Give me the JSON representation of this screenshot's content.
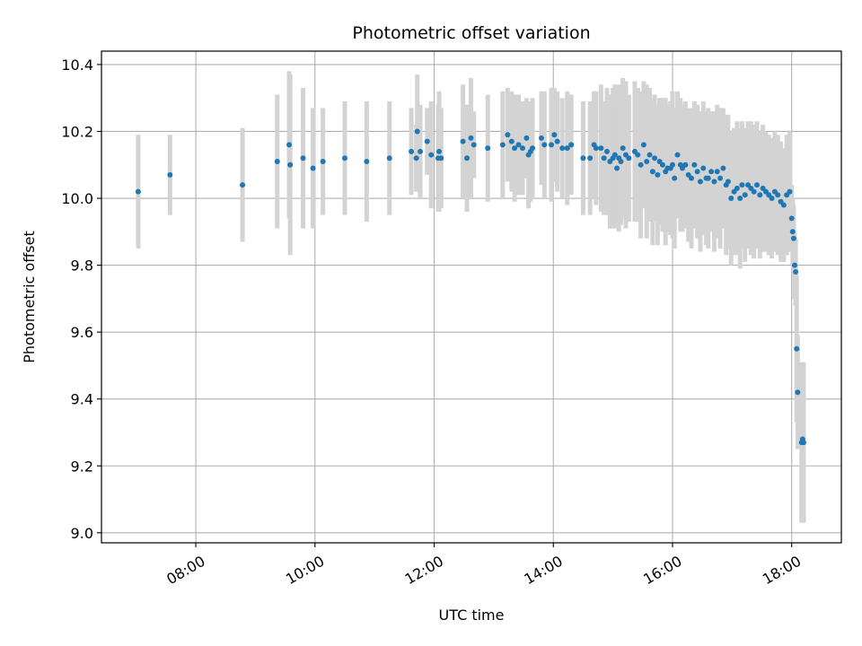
{
  "chart_data": {
    "type": "scatter",
    "title": "Photometric offset variation",
    "xlabel": "UTC time",
    "ylabel": "Photometric offset",
    "xlim": [
      "06:25",
      "18:50"
    ],
    "ylim": [
      8.97,
      10.44
    ],
    "x_ticks": [
      "08:00",
      "10:00",
      "12:00",
      "14:00",
      "16:00",
      "18:00"
    ],
    "y_ticks": [
      "9.0",
      "9.2",
      "9.4",
      "9.6",
      "9.8",
      "10.0",
      "10.2",
      "10.4"
    ],
    "grid": true,
    "colors": {
      "point": "#1f77b4",
      "errorbar": "#d3d3d3",
      "grid": "#b0b0b0"
    },
    "series": [
      {
        "x": [
          "07:02",
          "07:34",
          "08:47",
          "09:22",
          "09:34",
          "09:35",
          "09:48",
          "09:58",
          "10:08",
          "10:30",
          "10:52",
          "11:15",
          "11:37",
          "11:42",
          "11:43",
          "11:46",
          "11:53",
          "11:57",
          "12:04",
          "12:05",
          "12:07",
          "12:29",
          "12:33",
          "12:37",
          "12:40",
          "12:54",
          "13:09",
          "13:14",
          "13:18",
          "13:21",
          "13:25",
          "13:29",
          "13:33",
          "13:35",
          "13:37",
          "13:39",
          "13:48",
          "13:51",
          "13:58",
          "14:01",
          "14:04",
          "14:09",
          "14:14",
          "14:18",
          "14:30",
          "14:37",
          "14:41",
          "14:43",
          "14:48",
          "14:51",
          "14:54",
          "14:57",
          "15:00",
          "15:02",
          "15:04",
          "15:06",
          "15:08",
          "15:10",
          "15:13",
          "15:16",
          "15:22",
          "15:25",
          "15:28",
          "15:31",
          "15:34",
          "15:37",
          "15:40",
          "15:42",
          "15:45",
          "15:47",
          "15:50",
          "15:53",
          "15:55",
          "15:58",
          "16:00",
          "16:02",
          "16:05",
          "16:08",
          "16:10",
          "16:13",
          "16:16",
          "16:19",
          "16:22",
          "16:25",
          "16:28",
          "16:31",
          "16:34",
          "16:36",
          "16:39",
          "16:42",
          "16:45",
          "16:48",
          "16:51",
          "16:54",
          "16:56",
          "16:59",
          "17:02",
          "17:05",
          "17:08",
          "17:10",
          "17:13",
          "17:16",
          "17:19",
          "17:22",
          "17:25",
          "17:28",
          "17:31",
          "17:34",
          "17:37",
          "17:40",
          "17:43",
          "17:46",
          "17:49",
          "17:52",
          "17:55",
          "17:58",
          "18:00",
          "18:01",
          "18:02",
          "18:03",
          "18:04",
          "18:05",
          "18:06",
          "18:10",
          "18:11",
          "18:12"
        ],
        "y": [
          10.02,
          10.07,
          10.04,
          10.11,
          10.16,
          10.1,
          10.12,
          10.09,
          10.11,
          10.12,
          10.11,
          10.12,
          10.14,
          10.12,
          10.2,
          10.14,
          10.17,
          10.13,
          10.12,
          10.14,
          10.12,
          10.17,
          10.12,
          10.18,
          10.16,
          10.15,
          10.16,
          10.19,
          10.17,
          10.15,
          10.16,
          10.15,
          10.18,
          10.13,
          10.14,
          10.15,
          10.18,
          10.16,
          10.16,
          10.19,
          10.17,
          10.15,
          10.15,
          10.16,
          10.12,
          10.12,
          10.16,
          10.15,
          10.15,
          10.12,
          10.14,
          10.11,
          10.12,
          10.13,
          10.09,
          10.12,
          10.11,
          10.15,
          10.13,
          10.12,
          10.14,
          10.13,
          10.1,
          10.16,
          10.11,
          10.13,
          10.08,
          10.12,
          10.07,
          10.11,
          10.1,
          10.08,
          10.09,
          10.09,
          10.1,
          10.06,
          10.13,
          10.1,
          10.09,
          10.1,
          10.07,
          10.06,
          10.1,
          10.08,
          10.05,
          10.09,
          10.06,
          10.06,
          10.08,
          10.05,
          10.08,
          10.06,
          10.09,
          10.04,
          10.05,
          10.0,
          10.02,
          10.03,
          10.0,
          10.04,
          10.01,
          10.04,
          10.03,
          10.02,
          10.04,
          10.01,
          10.03,
          10.02,
          10.01,
          10.0,
          10.02,
          10.01,
          9.99,
          9.98,
          10.01,
          10.02,
          9.94,
          9.9,
          9.88,
          9.8,
          9.78,
          9.55,
          9.42,
          9.27,
          9.28,
          9.27
        ],
        "err": [
          0.17,
          0.12,
          0.17,
          0.2,
          0.22,
          0.27,
          0.21,
          0.18,
          0.16,
          0.17,
          0.18,
          0.17,
          0.13,
          0.1,
          0.17,
          0.14,
          0.1,
          0.16,
          0.16,
          0.18,
          0.15,
          0.17,
          0.16,
          0.18,
          0.1,
          0.16,
          0.16,
          0.14,
          0.15,
          0.16,
          0.15,
          0.14,
          0.12,
          0.16,
          0.15,
          0.15,
          0.14,
          0.16,
          0.17,
          0.14,
          0.15,
          0.15,
          0.17,
          0.15,
          0.17,
          0.17,
          0.16,
          0.17,
          0.19,
          0.17,
          0.19,
          0.2,
          0.21,
          0.21,
          0.18,
          0.22,
          0.19,
          0.21,
          0.22,
          0.19,
          0.21,
          0.2,
          0.22,
          0.19,
          0.23,
          0.2,
          0.22,
          0.19,
          0.21,
          0.19,
          0.2,
          0.22,
          0.19,
          0.2,
          0.22,
          0.21,
          0.19,
          0.2,
          0.19,
          0.19,
          0.2,
          0.21,
          0.19,
          0.2,
          0.21,
          0.2,
          0.2,
          0.21,
          0.18,
          0.21,
          0.2,
          0.21,
          0.18,
          0.21,
          0.2,
          0.2,
          0.19,
          0.2,
          0.21,
          0.19,
          0.2,
          0.19,
          0.2,
          0.2,
          0.19,
          0.19,
          0.19,
          0.18,
          0.18,
          0.18,
          0.18,
          0.18,
          0.18,
          0.17,
          0.18,
          0.18,
          0.1,
          0.1,
          0.1,
          0.1,
          0.1,
          0.22,
          0.17,
          0.24,
          0.23,
          0.24
        ]
      }
    ]
  }
}
